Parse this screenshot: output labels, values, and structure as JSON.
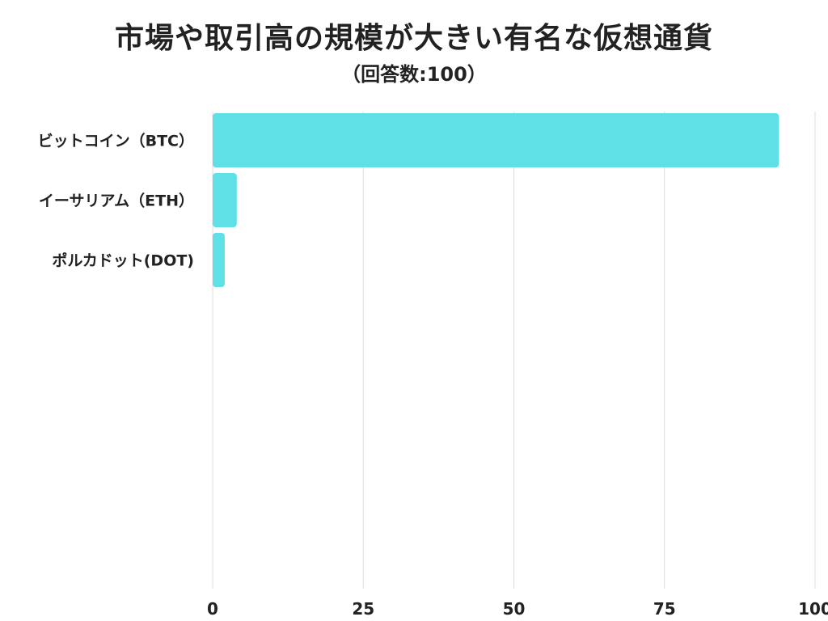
{
  "chart_data": {
    "type": "bar",
    "orientation": "horizontal",
    "title": "市場や取引高の規模が大きい有名な仮想通貨",
    "subtitle": "（回答数:100）",
    "categories": [
      "ビットコイン（BTC）",
      "イーサリアム（ETH）",
      "ポルカドット(DOT)"
    ],
    "values": [
      94,
      4,
      2
    ],
    "xlim": [
      0,
      100
    ],
    "xticks": [
      0,
      25,
      50,
      75,
      100
    ],
    "grid": true,
    "legend": "none",
    "bar_color": "#5EE0E6",
    "grid_color": "#DDDDDD"
  }
}
